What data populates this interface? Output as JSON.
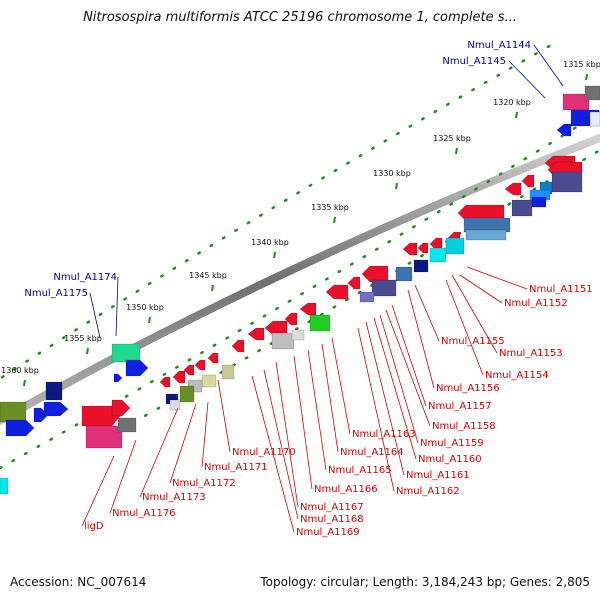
{
  "title": "Nitrosospira multiformis ATCC 25196 chromosome 1, complete s...",
  "footer": {
    "accession": "Accession: NC_007614",
    "summary": "Topology: circular; Length: 3,184,243 bp; Genes: 2,805"
  },
  "colors": {
    "backbone": "#8c8c8c",
    "label_reverse": "#dd0000",
    "label_forward": "#0000aa",
    "leader": "#dd0000",
    "dots": "#228b22"
  },
  "ticks": [
    "1315 kbp",
    "1320 kbp",
    "1325 kbp",
    "1330 kbp",
    "1335 kbp",
    "1340 kbp",
    "1345 kbp",
    "1350 kbp",
    "1355 kbp",
    "1360 kbp"
  ],
  "labels_forward": [
    "Nmul_A1144",
    "Nmul_A1145",
    "Nmul_A1174",
    "Nmul_A1175"
  ],
  "labels_reverse": [
    "Nmul_A1151",
    "Nmul_A1152",
    "Nmul_A1153",
    "Nmul_A1154",
    "Nmul_A1155",
    "Nmul_A1156",
    "Nmul_A1157",
    "Nmul_A1158",
    "Nmul_A1159",
    "Nmul_A1160",
    "Nmul_A1161",
    "Nmul_A1162",
    "Nmul_A1163",
    "Nmul_A1164",
    "Nmul_A1165",
    "Nmul_A1166",
    "Nmul_A1167",
    "Nmul_A1168",
    "Nmul_A1169",
    "Nmul_A1170",
    "Nmul_A1171",
    "Nmul_A1172",
    "Nmul_A1173",
    "Nmul_A1176",
    "ligD"
  ]
}
